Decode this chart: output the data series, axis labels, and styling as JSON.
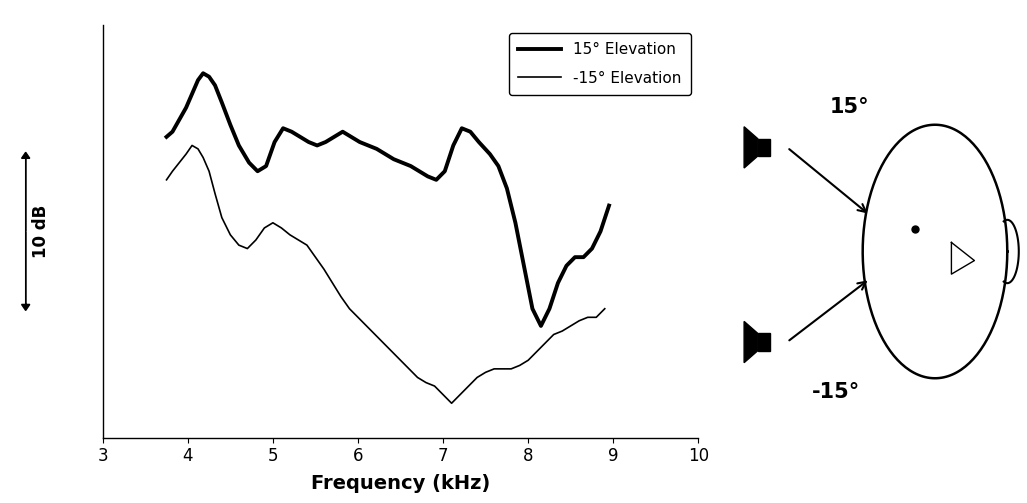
{
  "xlabel": "Frequency (kHz)",
  "xlim": [
    3,
    10
  ],
  "ylim": [
    -12,
    12
  ],
  "xticks": [
    3,
    4,
    5,
    6,
    7,
    8,
    9,
    10
  ],
  "background_color": "#ffffff",
  "thick_lw": 2.8,
  "thin_lw": 1.2,
  "freq_15": [
    3.75,
    3.82,
    3.9,
    3.98,
    4.05,
    4.12,
    4.18,
    4.25,
    4.32,
    4.4,
    4.5,
    4.6,
    4.72,
    4.82,
    4.92,
    5.02,
    5.12,
    5.22,
    5.32,
    5.42,
    5.52,
    5.62,
    5.72,
    5.82,
    5.92,
    6.02,
    6.12,
    6.22,
    6.32,
    6.42,
    6.52,
    6.62,
    6.72,
    6.82,
    6.92,
    7.02,
    7.12,
    7.22,
    7.32,
    7.42,
    7.55,
    7.65,
    7.75,
    7.85,
    7.95,
    8.05,
    8.15,
    8.25,
    8.35,
    8.45,
    8.55,
    8.65,
    8.75,
    8.85,
    8.95
  ],
  "amp_15": [
    5.5,
    5.8,
    6.5,
    7.2,
    8.0,
    8.8,
    9.2,
    9.0,
    8.5,
    7.5,
    6.2,
    5.0,
    4.0,
    3.5,
    3.8,
    5.2,
    6.0,
    5.8,
    5.5,
    5.2,
    5.0,
    5.2,
    5.5,
    5.8,
    5.5,
    5.2,
    5.0,
    4.8,
    4.5,
    4.2,
    4.0,
    3.8,
    3.5,
    3.2,
    3.0,
    3.5,
    5.0,
    6.0,
    5.8,
    5.2,
    4.5,
    3.8,
    2.5,
    0.5,
    -2.0,
    -4.5,
    -5.5,
    -4.5,
    -3.0,
    -2.0,
    -1.5,
    -1.5,
    -1.0,
    0.0,
    1.5
  ],
  "freq_n15": [
    3.75,
    3.82,
    3.9,
    3.98,
    4.05,
    4.12,
    4.18,
    4.25,
    4.32,
    4.4,
    4.5,
    4.6,
    4.7,
    4.8,
    4.9,
    5.0,
    5.1,
    5.2,
    5.3,
    5.4,
    5.5,
    5.6,
    5.7,
    5.8,
    5.9,
    6.0,
    6.1,
    6.2,
    6.3,
    6.4,
    6.5,
    6.6,
    6.7,
    6.8,
    6.9,
    7.0,
    7.1,
    7.2,
    7.3,
    7.4,
    7.5,
    7.6,
    7.7,
    7.8,
    7.9,
    8.0,
    8.1,
    8.2,
    8.3,
    8.4,
    8.5,
    8.6,
    8.7,
    8.8,
    8.9
  ],
  "amp_n15": [
    3.0,
    3.5,
    4.0,
    4.5,
    5.0,
    4.8,
    4.3,
    3.5,
    2.2,
    0.8,
    -0.2,
    -0.8,
    -1.0,
    -0.5,
    0.2,
    0.5,
    0.2,
    -0.2,
    -0.5,
    -0.8,
    -1.5,
    -2.2,
    -3.0,
    -3.8,
    -4.5,
    -5.0,
    -5.5,
    -6.0,
    -6.5,
    -7.0,
    -7.5,
    -8.0,
    -8.5,
    -8.8,
    -9.0,
    -9.5,
    -10.0,
    -9.5,
    -9.0,
    -8.5,
    -8.2,
    -8.0,
    -8.0,
    -8.0,
    -7.8,
    -7.5,
    -7.0,
    -6.5,
    -6.0,
    -5.8,
    -5.5,
    -5.2,
    -5.0,
    -5.0,
    -4.5
  ],
  "ylabel_text": "10 dB",
  "legend_label_15": "15° Elevation",
  "legend_label_n15": "-15° Elevation",
  "diagram_15_label": "15°",
  "diagram_n15_label": "-15°"
}
